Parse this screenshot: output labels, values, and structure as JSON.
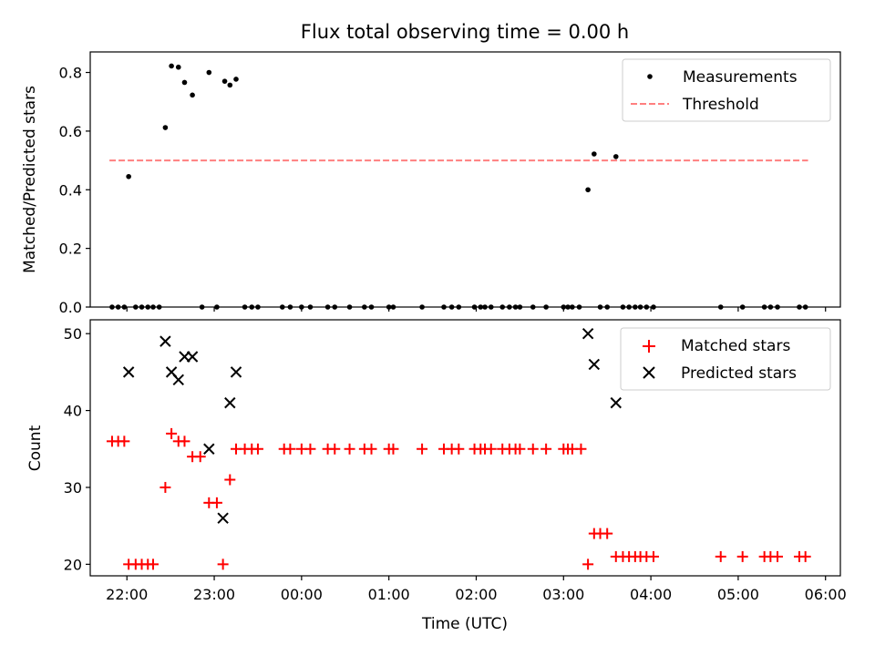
{
  "chart_data": [
    {
      "type": "scatter",
      "title": "Flux total observing time = 0.00 h",
      "xlabel": "",
      "ylabel": "Matched/Predicted stars",
      "ylim": [
        0,
        0.87
      ],
      "yticks": [
        "0.0",
        "0.2",
        "0.4",
        "0.6",
        "0.8"
      ],
      "ytick_values": [
        0,
        0.2,
        0.4,
        0.6,
        0.8
      ],
      "xlim_hours": [
        21.58,
        30.17
      ],
      "threshold": {
        "name": "Threshold",
        "value": 0.5,
        "x_range": [
          21.8,
          29.8
        ],
        "color": "#ff7f7f"
      },
      "legend": {
        "position": "top-right",
        "entries": [
          "Measurements",
          "Threshold"
        ]
      },
      "series": [
        {
          "name": "Measurements",
          "color": "#000000",
          "x": [
            21.83,
            21.9,
            21.97,
            22.02,
            22.1,
            22.17,
            22.24,
            22.3,
            22.37,
            22.44,
            22.51,
            22.59,
            22.66,
            22.75,
            22.86,
            22.94,
            23.03,
            23.12,
            23.18,
            23.25,
            23.35,
            23.43,
            23.5,
            23.78,
            23.87,
            24.0,
            24.1,
            24.3,
            24.38,
            24.55,
            24.72,
            24.8,
            25.0,
            25.05,
            25.38,
            25.63,
            25.72,
            25.8,
            25.98,
            26.05,
            26.1,
            26.17,
            26.3,
            26.38,
            26.45,
            26.5,
            26.65,
            26.8,
            27.0,
            27.05,
            27.1,
            27.18,
            27.28,
            27.35,
            27.42,
            27.5,
            27.6,
            27.68,
            27.75,
            27.82,
            27.88,
            27.95,
            28.03,
            28.8,
            29.05,
            29.3,
            29.37,
            29.45,
            29.7,
            29.77
          ],
          "y": [
            0,
            0,
            0,
            0.445,
            0,
            0,
            0,
            0,
            0,
            0.612,
            0.822,
            0.818,
            0.766,
            0.723,
            0,
            0.8,
            0,
            0.77,
            0.757,
            0.777,
            0,
            0,
            0,
            0,
            0,
            0,
            0,
            0,
            0,
            0,
            0,
            0,
            0,
            0,
            0,
            0,
            0,
            0,
            0,
            0,
            0,
            0,
            0,
            0,
            0,
            0,
            0,
            0,
            0,
            0,
            0,
            0,
            0.4,
            0.522,
            0,
            0,
            0.513,
            0,
            0,
            0,
            0,
            0,
            0,
            0,
            0,
            0,
            0,
            0,
            0,
            0
          ]
        }
      ]
    },
    {
      "type": "scatter",
      "title": "",
      "xlabel": "Time (UTC)",
      "ylabel": "Count",
      "ylim": [
        18.5,
        51.8
      ],
      "yticks": [
        "20",
        "30",
        "40",
        "50"
      ],
      "ytick_values": [
        20,
        30,
        40,
        50
      ],
      "xlim_hours": [
        21.58,
        30.17
      ],
      "xticks": [
        "22:00",
        "23:00",
        "00:00",
        "01:00",
        "02:00",
        "03:00",
        "04:00",
        "05:00",
        "06:00"
      ],
      "xtick_hours": [
        22,
        23,
        24,
        25,
        26,
        27,
        28,
        29,
        30
      ],
      "legend": {
        "position": "top-right",
        "entries": [
          "Matched stars",
          "Predicted stars"
        ]
      },
      "series": [
        {
          "name": "Matched stars",
          "color": "#ff0000",
          "x": [
            21.83,
            21.9,
            21.97,
            22.02,
            22.1,
            22.17,
            22.24,
            22.3,
            22.44,
            22.51,
            22.59,
            22.66,
            22.75,
            22.84,
            22.94,
            23.03,
            23.1,
            23.18,
            23.25,
            23.35,
            23.43,
            23.5,
            23.8,
            23.87,
            24.0,
            24.1,
            24.3,
            24.38,
            24.55,
            24.72,
            24.8,
            25.0,
            25.05,
            25.38,
            25.63,
            25.72,
            25.8,
            25.98,
            26.05,
            26.1,
            26.17,
            26.3,
            26.38,
            26.45,
            26.5,
            26.65,
            26.8,
            27.0,
            27.05,
            27.1,
            27.2,
            27.28,
            27.35,
            27.42,
            27.5,
            27.6,
            27.68,
            27.75,
            27.82,
            27.88,
            27.95,
            28.03,
            28.8,
            29.05,
            29.3,
            29.37,
            29.45,
            29.7,
            29.77
          ],
          "y": [
            36,
            36,
            36,
            20,
            20,
            20,
            20,
            20,
            30,
            37,
            36,
            36,
            34,
            34,
            28,
            28,
            20,
            31,
            35,
            35,
            35,
            35,
            35,
            35,
            35,
            35,
            35,
            35,
            35,
            35,
            35,
            35,
            35,
            35,
            35,
            35,
            35,
            35,
            35,
            35,
            35,
            35,
            35,
            35,
            35,
            35,
            35,
            35,
            35,
            35,
            35,
            20,
            24,
            24,
            24,
            21,
            21,
            21,
            21,
            21,
            21,
            21,
            21,
            21,
            21,
            21,
            21,
            21,
            21
          ]
        },
        {
          "name": "Predicted stars",
          "color": "#000000",
          "x": [
            22.02,
            22.44,
            22.51,
            22.59,
            22.66,
            22.75,
            22.94,
            23.1,
            23.18,
            23.25,
            27.28,
            27.35,
            27.6
          ],
          "y": [
            45,
            49,
            45,
            44,
            47,
            47,
            35,
            26,
            41,
            45,
            50,
            46,
            41
          ]
        }
      ]
    }
  ]
}
